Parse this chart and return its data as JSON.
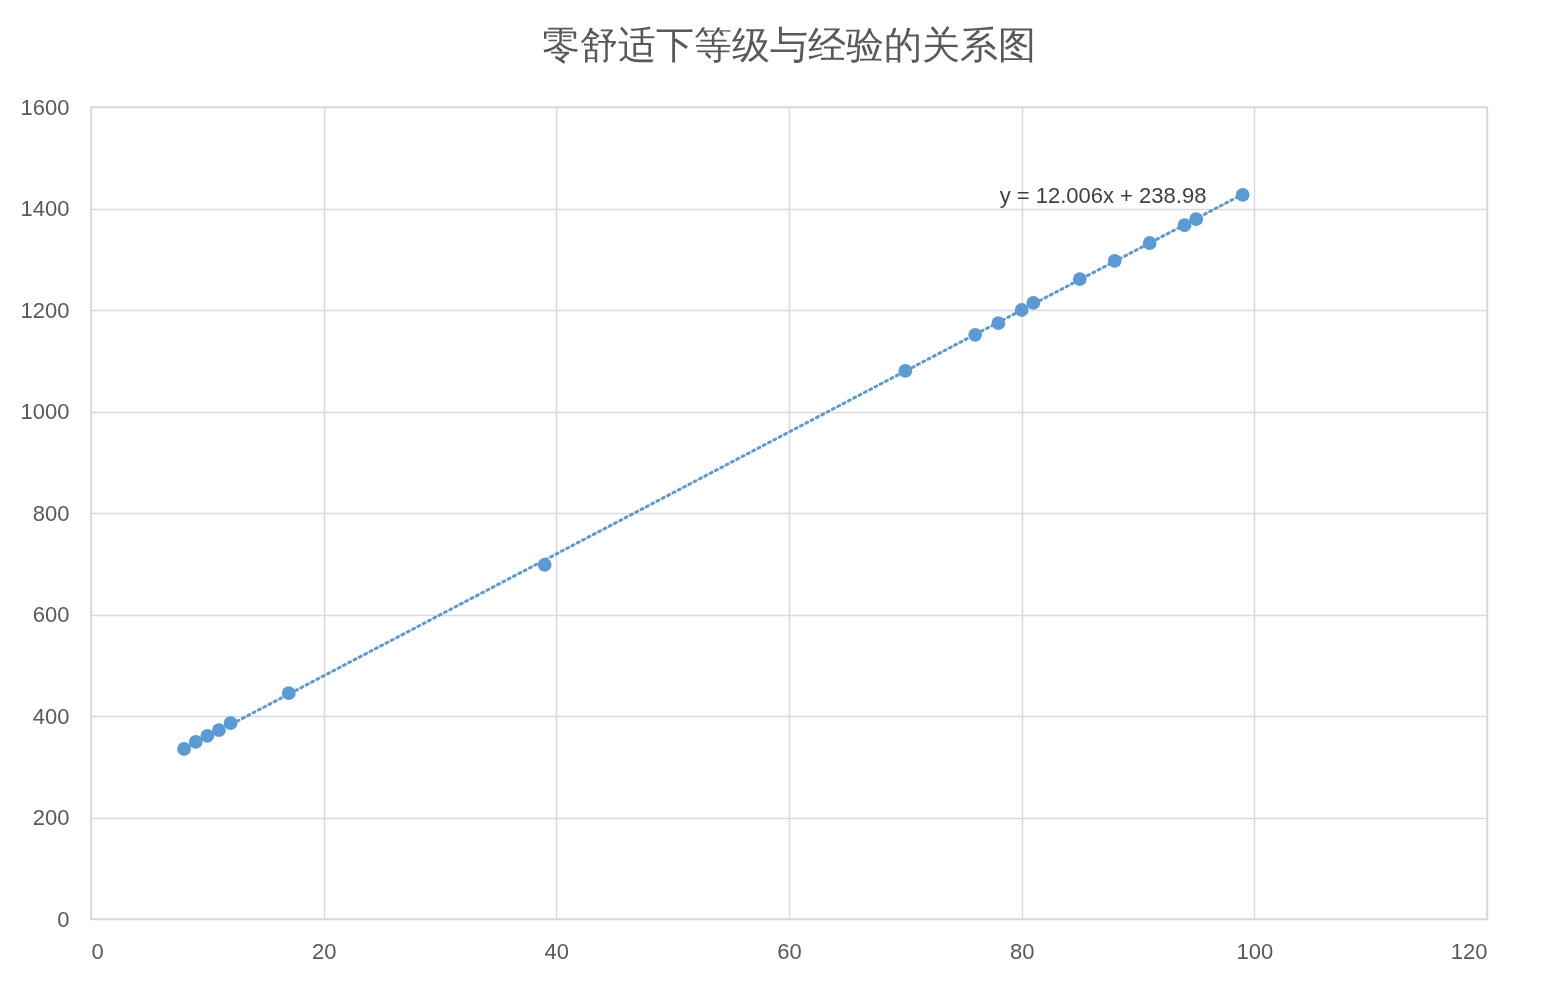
{
  "chart_data": {
    "type": "scatter",
    "title": "零舒适下等级与经验的关系图",
    "x": [
      8,
      9,
      10,
      11,
      12,
      17,
      39,
      70,
      76,
      78,
      80,
      81,
      85,
      88,
      91,
      94,
      95,
      99
    ],
    "series": [
      {
        "color": "#5b9bd5",
        "marker": "circle",
        "values": [
          335,
          349,
          361,
          372,
          386,
          445,
          698,
          1080,
          1151,
          1174,
          1200,
          1214,
          1261,
          1297,
          1332,
          1367,
          1379,
          1427
        ]
      },
      {
        "type": "line",
        "color": "#5b9bd5",
        "line_style": "dotted",
        "x": [
          8,
          99
        ],
        "values": [
          335,
          1428
        ]
      }
    ],
    "annotations": [
      "y = 12.006x + 238.98"
    ],
    "xlim": [
      0,
      120
    ],
    "xticks": [
      0,
      20,
      40,
      60,
      80,
      100,
      120
    ],
    "ylim": [
      0,
      1600
    ],
    "yticks": [
      0,
      200,
      400,
      600,
      800,
      1000,
      1200,
      1400,
      1600
    ],
    "grid": true
  }
}
